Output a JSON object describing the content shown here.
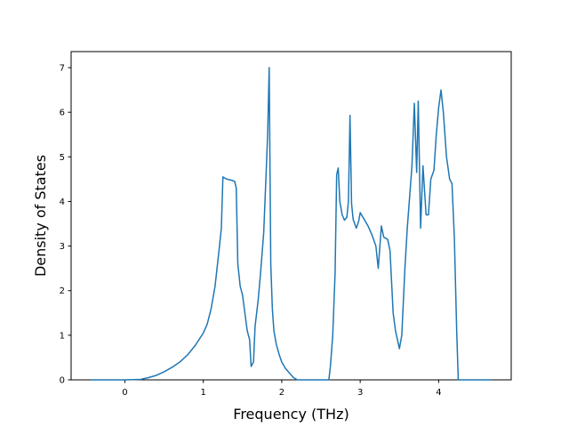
{
  "chart_data": {
    "type": "line",
    "x_label": "Frequency (THz)",
    "y_label": "Density of States",
    "x": [
      -0.44,
      0.0,
      0.2,
      0.3,
      0.4,
      0.5,
      0.6,
      0.7,
      0.8,
      0.9,
      1.0,
      1.05,
      1.1,
      1.15,
      1.2,
      1.23,
      1.25,
      1.3,
      1.35,
      1.4,
      1.42,
      1.44,
      1.47,
      1.5,
      1.53,
      1.56,
      1.59,
      1.61,
      1.64,
      1.66,
      1.7,
      1.73,
      1.77,
      1.8,
      1.82,
      1.84,
      1.86,
      1.88,
      1.9,
      1.93,
      1.97,
      2.0,
      2.05,
      2.1,
      2.15,
      2.2,
      2.6,
      2.62,
      2.65,
      2.68,
      2.7,
      2.72,
      2.74,
      2.77,
      2.8,
      2.83,
      2.85,
      2.87,
      2.89,
      2.91,
      2.95,
      2.98,
      3.0,
      3.05,
      3.1,
      3.15,
      3.2,
      3.23,
      3.27,
      3.3,
      3.35,
      3.38,
      3.42,
      3.45,
      3.5,
      3.53,
      3.57,
      3.6,
      3.63,
      3.66,
      3.69,
      3.72,
      3.74,
      3.77,
      3.8,
      3.84,
      3.87,
      3.9,
      3.94,
      3.97,
      4.0,
      4.03,
      4.06,
      4.1,
      4.14,
      4.17,
      4.2,
      4.23,
      4.25,
      4.67
    ],
    "values": [
      0,
      0,
      0.01,
      0.05,
      0.1,
      0.18,
      0.28,
      0.4,
      0.56,
      0.78,
      1.05,
      1.25,
      1.6,
      2.1,
      2.9,
      3.4,
      4.55,
      4.5,
      4.48,
      4.45,
      4.3,
      2.6,
      2.1,
      1.9,
      1.5,
      1.1,
      0.9,
      0.3,
      0.4,
      1.2,
      1.8,
      2.4,
      3.3,
      4.6,
      5.5,
      7.0,
      2.6,
      1.6,
      1.1,
      0.8,
      0.55,
      0.4,
      0.25,
      0.15,
      0.05,
      0,
      0,
      0.3,
      1.0,
      2.4,
      4.6,
      4.75,
      4.0,
      3.7,
      3.58,
      3.65,
      4.0,
      5.93,
      3.95,
      3.6,
      3.4,
      3.55,
      3.75,
      3.6,
      3.45,
      3.25,
      3.0,
      2.5,
      3.45,
      3.2,
      3.15,
      2.9,
      1.5,
      1.1,
      0.7,
      1.0,
      2.5,
      3.4,
      4.1,
      4.8,
      6.2,
      4.65,
      6.25,
      3.4,
      4.8,
      3.7,
      3.7,
      4.5,
      4.7,
      5.5,
      6.1,
      6.5,
      6.0,
      5.0,
      4.5,
      4.4,
      3.2,
      1.1,
      0,
      0
    ],
    "color": "#1f77b4",
    "xlim": [
      -0.685,
      4.925
    ],
    "xticks": [
      0,
      1,
      2,
      3,
      4
    ],
    "ylim": [
      0,
      7.36
    ],
    "yticks": [
      0,
      1,
      2,
      3,
      4,
      5,
      6,
      7
    ],
    "grid": false
  }
}
